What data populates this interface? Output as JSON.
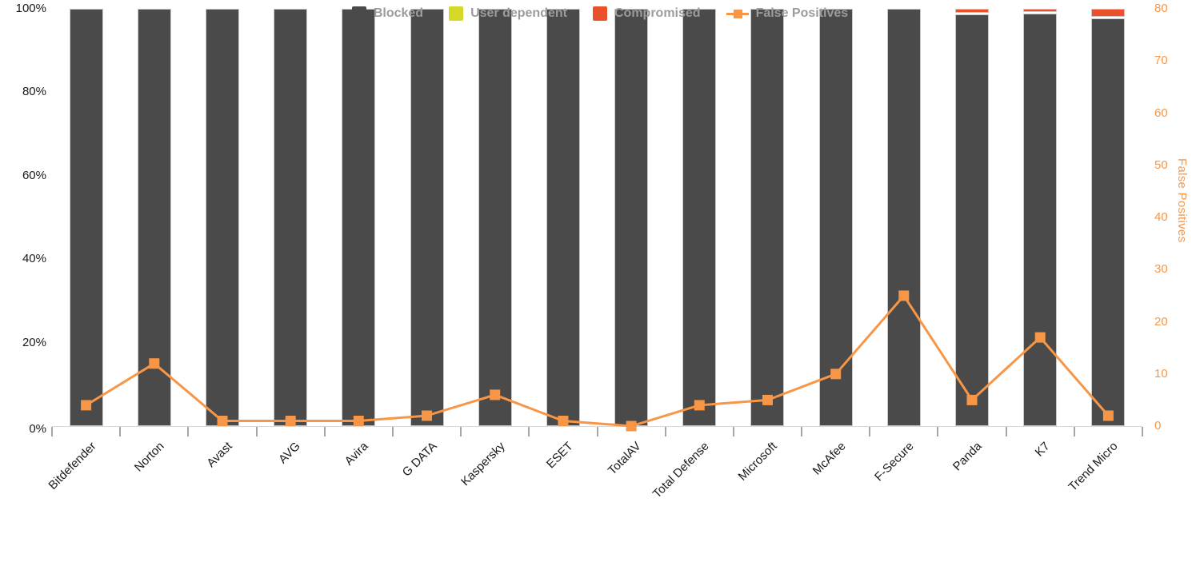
{
  "chart_data": {
    "type": "bar",
    "subtype": "stacked-percent-bars-with-line-overlay",
    "title": "",
    "categories": [
      "Bitdefender",
      "Norton",
      "Avast",
      "AVG",
      "Avira",
      "G DATA",
      "Kaspersky",
      "ESET",
      "TotalAV",
      "Total Defense",
      "Microsoft",
      "McAfee",
      "F-Secure",
      "Panda",
      "K7",
      "Trend Micro"
    ],
    "series": [
      {
        "name": "Blocked",
        "type": "bar",
        "stack": "protection",
        "unit": "%",
        "color": "#4a4a4a",
        "values": [
          100,
          100,
          100,
          100,
          100,
          100,
          100,
          100,
          100,
          100,
          100,
          100,
          100,
          99.1,
          99.2,
          98.1
        ]
      },
      {
        "name": "User dependent",
        "type": "bar",
        "stack": "protection",
        "unit": "%",
        "color": "#d5d829",
        "values": [
          0,
          0,
          0,
          0,
          0,
          0,
          0,
          0,
          0,
          0,
          0,
          0,
          0,
          0,
          0,
          0
        ]
      },
      {
        "name": "Compromised",
        "type": "bar",
        "stack": "protection",
        "unit": "%",
        "color": "#e8512a",
        "values": [
          0,
          0,
          0,
          0,
          0,
          0,
          0,
          0,
          0,
          0,
          0,
          0,
          0,
          0.9,
          0.8,
          1.9
        ]
      },
      {
        "name": "False Positives",
        "type": "line",
        "axis": "right",
        "color": "#f79646",
        "marker": "square",
        "values": [
          4,
          12,
          1,
          1,
          1,
          2,
          6,
          1,
          0,
          4,
          5,
          10,
          25,
          5,
          17,
          2
        ]
      }
    ],
    "left_axis": {
      "min": 0,
      "max": 100,
      "ticks": [
        "0%",
        "20%",
        "40%",
        "60%",
        "80%",
        "100%"
      ],
      "tick_values": [
        0,
        20,
        40,
        60,
        80,
        100
      ],
      "color": "#1a1a1a"
    },
    "right_axis": {
      "label": "False Positives",
      "min": 0,
      "max": 80,
      "tick_values": [
        0,
        10,
        20,
        30,
        40,
        50,
        60,
        70,
        80
      ],
      "color": "#f79646"
    },
    "grid": false,
    "legend_position": "bottom"
  },
  "legend": {
    "items": [
      {
        "label": "Blocked",
        "swatch": "square",
        "color": "#4a4a4a",
        "icon_name": "blocked-swatch"
      },
      {
        "label": "User dependent",
        "swatch": "square",
        "color": "#d5d829",
        "icon_name": "user-dependent-swatch"
      },
      {
        "label": "Compromised",
        "swatch": "square",
        "color": "#e8512a",
        "icon_name": "compromised-swatch"
      },
      {
        "label": "False Positives",
        "swatch": "line-marker",
        "color": "#f79646",
        "icon_name": "false-positives-line-marker"
      }
    ]
  },
  "colors": {
    "background": "#ffffff",
    "bar_blocked": "#4a4a4a",
    "bar_user_dependent": "#d5d829",
    "bar_compromised": "#e8512a",
    "fp_line": "#f79646",
    "right_axis_text": "#f79646",
    "left_axis_text": "#1a1a1a",
    "x_label_text": "#1a1a1a",
    "tick_mark": "#a6a6a6",
    "legend_text": "#9b9b9b"
  }
}
